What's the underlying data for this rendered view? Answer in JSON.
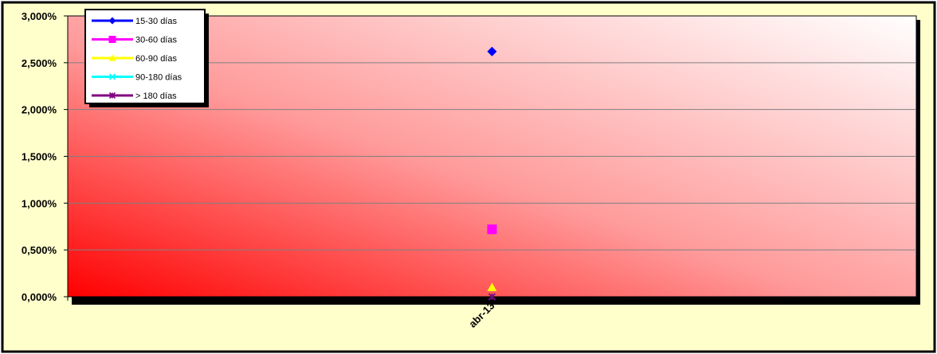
{
  "chart_data": {
    "type": "line",
    "categories": [
      "abr-13"
    ],
    "series": [
      {
        "name": "15-30 días",
        "values": [
          2.62
        ],
        "color": "#0000ff",
        "marker": "diamond"
      },
      {
        "name": "30-60 días",
        "values": [
          0.72
        ],
        "color": "#ff00ff",
        "marker": "square"
      },
      {
        "name": "60-90 días",
        "values": [
          0.1
        ],
        "color": "#ffff00",
        "marker": "triangle"
      },
      {
        "name": "90-180 días",
        "values": [
          0.0
        ],
        "color": "#00ffff",
        "marker": "x"
      },
      {
        "name": "> 180 días",
        "values": [
          0.0
        ],
        "color": "#800080",
        "marker": "star"
      }
    ],
    "yticks": [
      "0,000%",
      "0,500%",
      "1,000%",
      "1,500%",
      "2,000%",
      "2,500%",
      "3,000%"
    ],
    "ylim": [
      0,
      3
    ],
    "grid": true,
    "legend_position": "top-left",
    "colors": {
      "chart_background": "#ffffcc",
      "plot_gradient_start": "#ff0000",
      "plot_gradient_end": "#ffffff",
      "border": "#000000"
    }
  }
}
